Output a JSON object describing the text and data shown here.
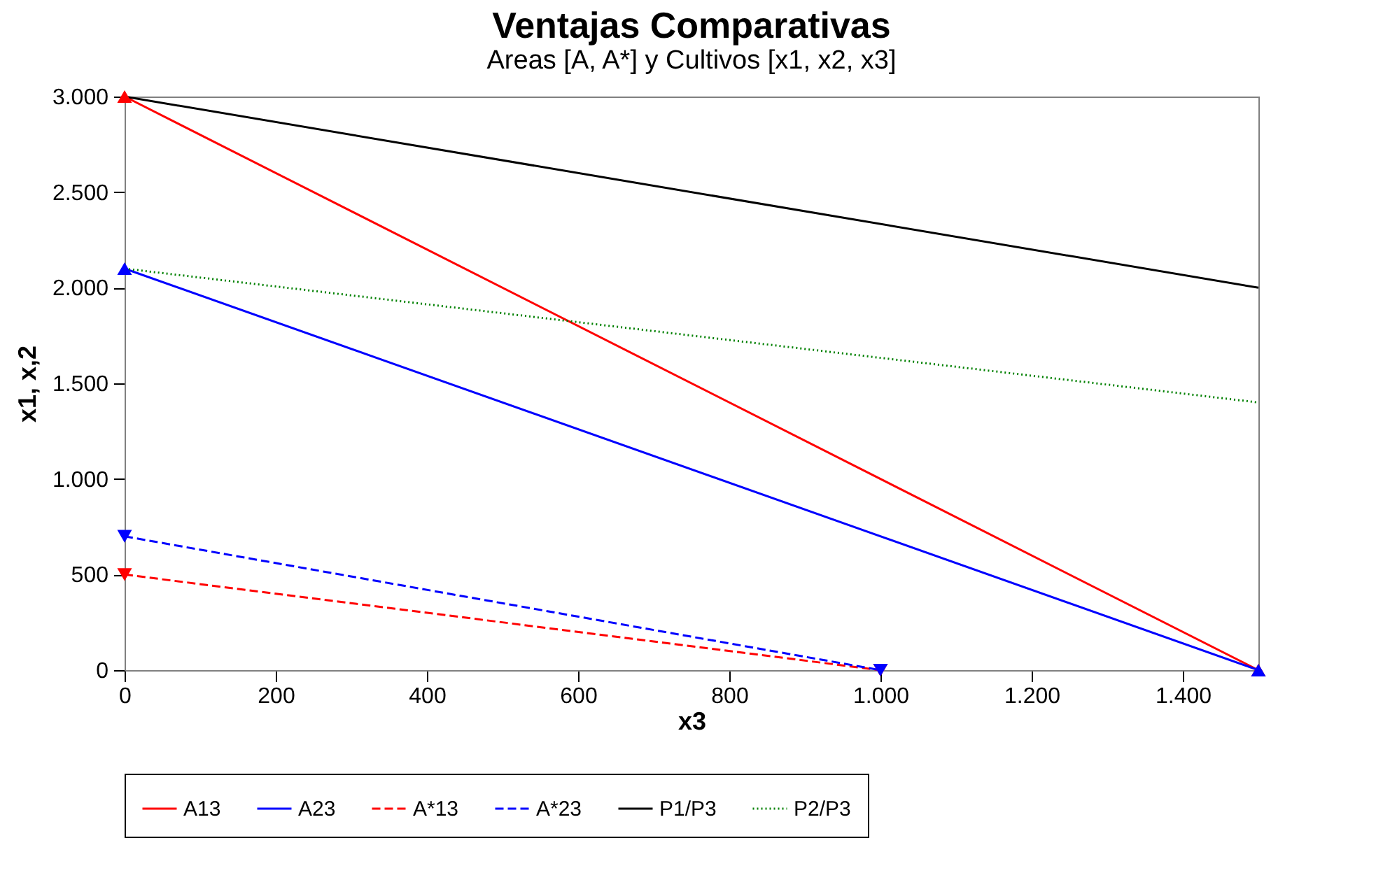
{
  "chart_data": {
    "type": "line",
    "title": "Ventajas Comparativas",
    "subtitle": "Areas [A, A*] y Cultivos [x1, x2, x3]",
    "xlabel": "x3",
    "ylabel": "x1,  x,2",
    "xlim": [
      0,
      1500
    ],
    "ylim": [
      0,
      3000
    ],
    "xticks": [
      0,
      200,
      400,
      600,
      800,
      {
        "value": 1000,
        "label": "1.000"
      },
      {
        "value": 1200,
        "label": "1.200"
      },
      {
        "value": 1400,
        "label": "1.400"
      }
    ],
    "yticks": [
      0,
      500,
      {
        "value": 1000,
        "label": "1.000"
      },
      {
        "value": 1500,
        "label": "1.500"
      },
      {
        "value": 2000,
        "label": "2.000"
      },
      {
        "value": 2500,
        "label": "2.500"
      },
      {
        "value": 3000,
        "label": "3.000"
      }
    ],
    "grid": false,
    "legend": "bottom",
    "series": [
      {
        "name": "A13",
        "color": "#ff0000",
        "x": [
          0,
          1500
        ],
        "values": [
          3000,
          0
        ],
        "marker": "triangle",
        "line_style": "solid"
      },
      {
        "name": "A23",
        "color": "#0000ff",
        "x": [
          0,
          1500
        ],
        "values": [
          2100,
          0
        ],
        "marker": "triangle",
        "line_style": "solid"
      },
      {
        "name": "A*13",
        "color": "#ff0000",
        "x": [
          0,
          1000
        ],
        "values": [
          500,
          0
        ],
        "marker": "triangle-down",
        "line_style": "dashed"
      },
      {
        "name": "A*23",
        "color": "#0000ff",
        "x": [
          0,
          1000
        ],
        "values": [
          700,
          0
        ],
        "marker": "triangle-down",
        "line_style": "dashed"
      },
      {
        "name": "P1/P3",
        "color": "#000000",
        "x": [
          0,
          1500
        ],
        "values": [
          3000,
          2000
        ],
        "marker": "none",
        "line_style": "solid"
      },
      {
        "name": "P2/P3",
        "color": "#008000",
        "x": [
          0,
          1500
        ],
        "values": [
          2100,
          1400
        ],
        "marker": "none",
        "line_style": "dotted"
      }
    ]
  }
}
